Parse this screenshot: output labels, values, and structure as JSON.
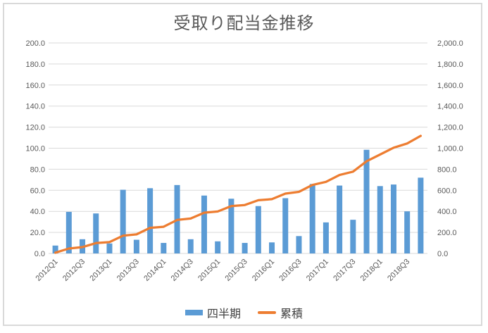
{
  "chart": {
    "title": "受取り配当金推移",
    "legend": {
      "quarterly_label": "四半期",
      "cumulative_label": "累積"
    }
  },
  "colors": {
    "bar": "#5B9BD5",
    "line": "#ED7D31",
    "gridline": "#D9D9D9",
    "axis_text": "#595959",
    "title_text": "#595959",
    "frame_border": "#D9D9D9"
  },
  "chart_data": {
    "type": "combo_bar_line",
    "title": "受取り配当金推移",
    "categories": [
      "2012Q1",
      "2012Q2",
      "2012Q3",
      "2012Q4",
      "2013Q1",
      "2013Q2",
      "2013Q3",
      "2013Q4",
      "2014Q1",
      "2014Q2",
      "2014Q3",
      "2014Q4",
      "2015Q1",
      "2015Q2",
      "2015Q3",
      "2015Q4",
      "2016Q1",
      "2016Q2",
      "2016Q3",
      "2016Q4",
      "2017Q1",
      "2017Q2",
      "2017Q3",
      "2017Q4",
      "2018Q1",
      "2018Q2",
      "2018Q3",
      "2018Q4"
    ],
    "x_axis_tick_labels": [
      "2012Q1",
      "2012Q3",
      "2013Q1",
      "2013Q3",
      "2014Q1",
      "2014Q3",
      "2015Q1",
      "2015Q3",
      "2016Q1",
      "2016Q3",
      "2017Q1",
      "2017Q3",
      "2018Q1",
      "2018Q3"
    ],
    "x_label_interval": 2,
    "series": [
      {
        "name": "四半期",
        "type": "bar",
        "axis": "left",
        "color": "#5B9BD5",
        "values": [
          7.5,
          39.5,
          13.5,
          38.0,
          9.5,
          60.5,
          13.0,
          62.0,
          10.0,
          65.0,
          13.5,
          55.0,
          11.5,
          52.0,
          10.0,
          45.0,
          10.5,
          52.5,
          16.5,
          66.0,
          29.5,
          64.5,
          32.0,
          98.5,
          64.0,
          65.5,
          40.0,
          72.0
        ]
      },
      {
        "name": "累積",
        "type": "line",
        "axis": "right",
        "color": "#ED7D31",
        "values": [
          7.5,
          47.0,
          60.5,
          98.5,
          108.0,
          168.5,
          181.5,
          243.5,
          253.5,
          318.5,
          332.0,
          387.0,
          398.5,
          450.5,
          460.5,
          505.5,
          516.0,
          568.5,
          585.0,
          651.0,
          680.5,
          745.0,
          777.0,
          875.5,
          939.5,
          1005.0,
          1045.0,
          1117.0
        ]
      }
    ],
    "left_axis": {
      "range": [
        0,
        200
      ],
      "step": 20,
      "tick_labels": [
        "0.0",
        "20.0",
        "40.0",
        "60.0",
        "80.0",
        "100.0",
        "120.0",
        "140.0",
        "160.0",
        "180.0",
        "200.0"
      ]
    },
    "right_axis": {
      "range": [
        0,
        2000
      ],
      "step": 200,
      "tick_labels": [
        "0.0",
        "200.0",
        "400.0",
        "600.0",
        "800.0",
        "1,000.0",
        "1,200.0",
        "1,400.0",
        "1,600.0",
        "1,800.0",
        "2,000.0"
      ]
    },
    "grid": true,
    "legend_position": "bottom"
  }
}
